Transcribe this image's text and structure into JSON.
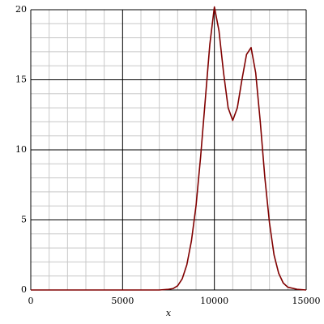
{
  "chart_data": {
    "type": "line",
    "x_label": "x",
    "x": [
      0,
      2500,
      5000,
      7000,
      7500,
      7750,
      8000,
      8250,
      8500,
      8750,
      9000,
      9250,
      9500,
      9750,
      10000,
      10250,
      10500,
      10750,
      11000,
      11250,
      11500,
      11750,
      12000,
      12250,
      12500,
      12750,
      13000,
      13250,
      13500,
      13750,
      14000,
      14500,
      15000
    ],
    "series": [
      {
        "color": "#800000",
        "values": [
          0,
          0,
          0,
          0,
          0.05,
          0.1,
          0.3,
          0.8,
          1.8,
          3.5,
          6.0,
          9.5,
          13.5,
          17.5,
          20.2,
          18.5,
          15.5,
          13.0,
          12.1,
          13.0,
          15.0,
          16.8,
          17.3,
          15.5,
          12.0,
          8.0,
          4.8,
          2.5,
          1.2,
          0.5,
          0.2,
          0.05,
          0
        ]
      }
    ],
    "xlim": [
      0,
      15000
    ],
    "ylim": [
      0,
      20
    ],
    "xticks": [
      0,
      5000,
      10000,
      15000
    ],
    "yticks": [
      0,
      5,
      10,
      15,
      20
    ],
    "xminorticks": [
      1000,
      2000,
      3000,
      4000,
      6000,
      7000,
      8000,
      9000,
      11000,
      12000,
      13000,
      14000
    ],
    "yminorticks": [
      1,
      2,
      3,
      4,
      6,
      7,
      8,
      9,
      11,
      12,
      13,
      14,
      16,
      17,
      18,
      19
    ],
    "grid": true
  }
}
